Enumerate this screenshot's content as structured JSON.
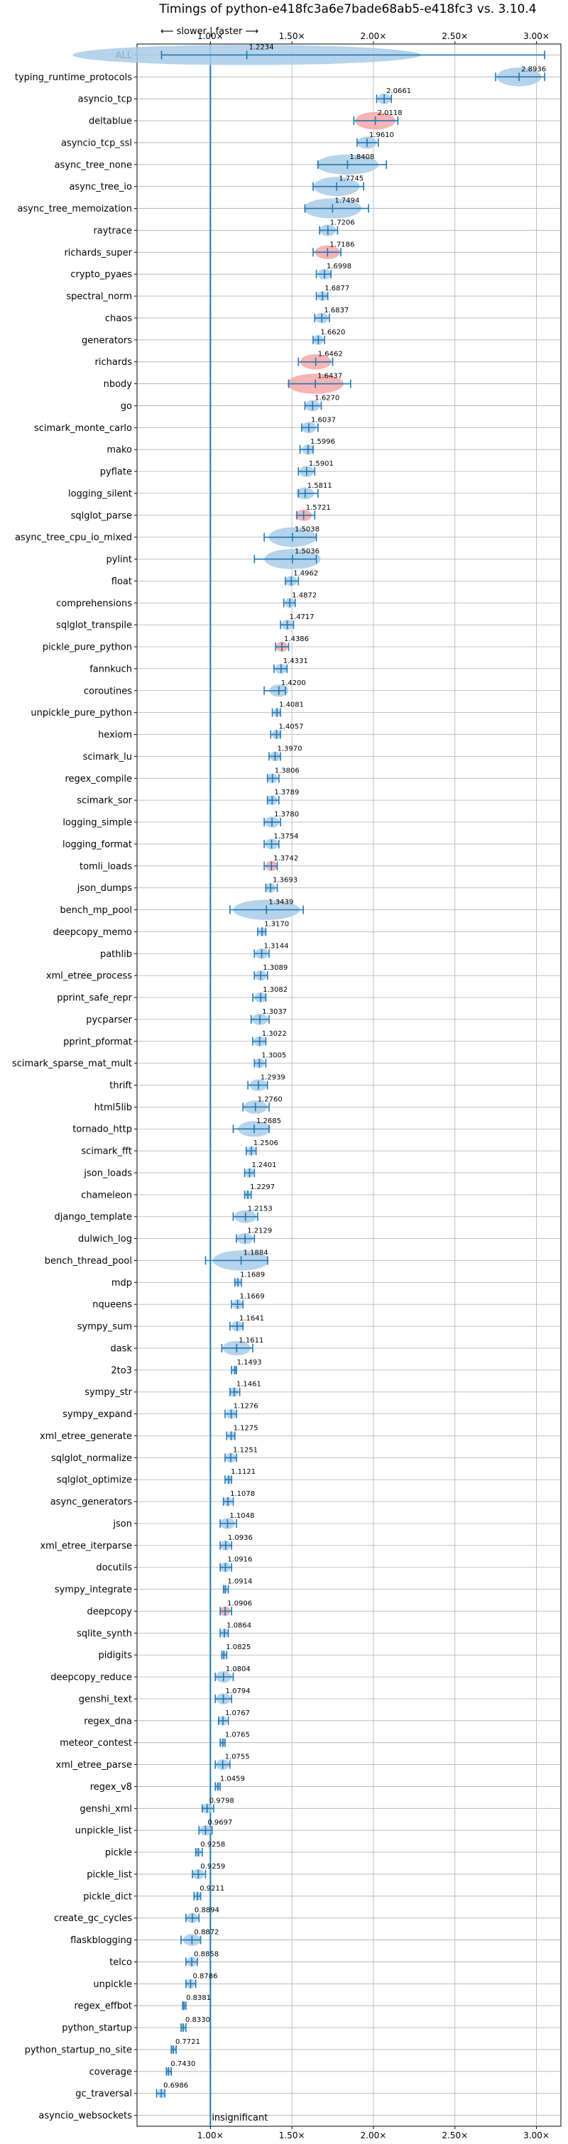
{
  "chart_data": {
    "type": "violin",
    "title": "Timings of python-e418fc3a6e7bade68ab5-e418fc3 vs. 3.10.4",
    "direction_note": "⟵ slower | faster ⟶",
    "bottom_note": "insignificant",
    "x_ticks": [
      "1.00×",
      "1.50×",
      "2.00×",
      "2.50×",
      "3.00×"
    ],
    "x_tick_values": [
      1.0,
      1.5,
      2.0,
      2.5,
      3.0
    ],
    "xlim": [
      0.55,
      3.15
    ],
    "reference_line": 1.0,
    "grid": true,
    "colors": {
      "violin": "#a8cbe8",
      "violin_slow": "#f4a7a7",
      "whisker": "#1f77b4",
      "reference": "#1f77b4",
      "grid": "#b0b0b0"
    },
    "categories": [
      "ALL",
      "typing_runtime_protocols",
      "asyncio_tcp",
      "deltablue",
      "asyncio_tcp_ssl",
      "async_tree_none",
      "async_tree_io",
      "async_tree_memoization",
      "raytrace",
      "richards_super",
      "crypto_pyaes",
      "spectral_norm",
      "chaos",
      "generators",
      "richards",
      "nbody",
      "go",
      "scimark_monte_carlo",
      "mako",
      "pyflate",
      "logging_silent",
      "sqlglot_parse",
      "async_tree_cpu_io_mixed",
      "pylint",
      "float",
      "comprehensions",
      "sqlglot_transpile",
      "pickle_pure_python",
      "fannkuch",
      "coroutines",
      "unpickle_pure_python",
      "hexiom",
      "scimark_lu",
      "regex_compile",
      "scimark_sor",
      "logging_simple",
      "logging_format",
      "tomli_loads",
      "json_dumps",
      "bench_mp_pool",
      "deepcopy_memo",
      "pathlib",
      "xml_etree_process",
      "pprint_safe_repr",
      "pycparser",
      "pprint_pformat",
      "scimark_sparse_mat_mult",
      "thrift",
      "html5lib",
      "tornado_http",
      "scimark_fft",
      "json_loads",
      "chameleon",
      "django_template",
      "dulwich_log",
      "bench_thread_pool",
      "mdp",
      "nqueens",
      "sympy_sum",
      "dask",
      "2to3",
      "sympy_str",
      "sympy_expand",
      "xml_etree_generate",
      "sqlglot_normalize",
      "sqlglot_optimize",
      "async_generators",
      "json",
      "xml_etree_iterparse",
      "docutils",
      "sympy_integrate",
      "deepcopy",
      "sqlite_synth",
      "pidigits",
      "deepcopy_reduce",
      "genshi_text",
      "regex_dna",
      "meteor_contest",
      "xml_etree_parse",
      "regex_v8",
      "genshi_xml",
      "unpickle_list",
      "pickle",
      "pickle_list",
      "pickle_dict",
      "create_gc_cycles",
      "flaskblogging",
      "telco",
      "unpickle",
      "regex_effbot",
      "python_startup",
      "python_startup_no_site",
      "coverage",
      "gc_traversal",
      "asyncio_websockets"
    ],
    "values": [
      1.2234,
      2.8936,
      2.0661,
      2.0118,
      1.961,
      1.8408,
      1.7745,
      1.7494,
      1.7206,
      1.7186,
      1.6998,
      1.6877,
      1.6837,
      1.662,
      1.6462,
      1.6437,
      1.627,
      1.6037,
      1.5996,
      1.5901,
      1.5811,
      1.5721,
      1.5038,
      1.5036,
      1.4962,
      1.4872,
      1.4717,
      1.4386,
      1.4331,
      1.42,
      1.4081,
      1.4057,
      1.397,
      1.3806,
      1.3789,
      1.378,
      1.3754,
      1.3742,
      1.3693,
      1.3439,
      1.317,
      1.3144,
      1.3089,
      1.3082,
      1.3037,
      1.3022,
      1.3005,
      1.2939,
      1.276,
      1.2685,
      1.2506,
      1.2401,
      1.2297,
      1.2153,
      1.2129,
      1.1884,
      1.1689,
      1.1669,
      1.1641,
      1.1611,
      1.1493,
      1.1461,
      1.1276,
      1.1275,
      1.1251,
      1.1121,
      1.1078,
      1.1048,
      1.0936,
      1.0916,
      1.0914,
      1.0906,
      1.0864,
      1.0825,
      1.0804,
      1.0794,
      1.0767,
      1.0765,
      1.0755,
      1.0459,
      0.9798,
      0.9697,
      0.9258,
      0.9259,
      0.9211,
      0.8894,
      0.8872,
      0.8858,
      0.8786,
      0.8381,
      0.833,
      0.7721,
      0.743,
      0.6986,
      null
    ],
    "value_labels": [
      "1.2234",
      "2.8936",
      "2.0661",
      "2.0118",
      "1.9610",
      "1.8408",
      "1.7745",
      "1.7494",
      "1.7206",
      "1.7186",
      "1.6998",
      "1.6877",
      "1.6837",
      "1.6620",
      "1.6462",
      "1.6437",
      "1.6270",
      "1.6037",
      "1.5996",
      "1.5901",
      "1.5811",
      "1.5721",
      "1.5038",
      "1.5036",
      "1.4962",
      "1.4872",
      "1.4717",
      "1.4386",
      "1.4331",
      "1.4200",
      "1.4081",
      "1.4057",
      "1.3970",
      "1.3806",
      "1.3789",
      "1.3780",
      "1.3754",
      "1.3742",
      "1.3693",
      "1.3439",
      "1.3170",
      "1.3144",
      "1.3089",
      "1.3082",
      "1.3037",
      "1.3022",
      "1.3005",
      "1.2939",
      "1.2760",
      "1.2685",
      "1.2506",
      "1.2401",
      "1.2297",
      "1.2153",
      "1.2129",
      "1.1884",
      "1.1689",
      "1.1669",
      "1.1641",
      "1.1611",
      "1.1493",
      "1.1461",
      "1.1276",
      "1.1275",
      "1.1251",
      "1.1121",
      "1.1078",
      "1.1048",
      "1.0936",
      "1.0916",
      "1.0914",
      "1.0906",
      "1.0864",
      "1.0825",
      "1.0804",
      "1.0794",
      "1.0767",
      "1.0765",
      "1.0755",
      "1.0459",
      "0.9798",
      "0.9697",
      "0.9258",
      "0.9259",
      "0.9211",
      "0.8894",
      "0.8872",
      "0.8858",
      "0.8786",
      "0.8381",
      "0.8330",
      "0.7721",
      "0.7430",
      "0.6986",
      ""
    ],
    "ranges": [
      [
        0.7,
        3.05
      ],
      [
        2.75,
        3.05
      ],
      [
        2.02,
        2.11
      ],
      [
        1.88,
        2.15
      ],
      [
        1.9,
        2.03
      ],
      [
        1.66,
        2.08
      ],
      [
        1.63,
        1.94
      ],
      [
        1.58,
        1.97
      ],
      [
        1.67,
        1.78
      ],
      [
        1.63,
        1.8
      ],
      [
        1.65,
        1.74
      ],
      [
        1.65,
        1.72
      ],
      [
        1.64,
        1.73
      ],
      [
        1.63,
        1.7
      ],
      [
        1.54,
        1.75
      ],
      [
        1.48,
        1.86
      ],
      [
        1.58,
        1.68
      ],
      [
        1.56,
        1.66
      ],
      [
        1.55,
        1.63
      ],
      [
        1.54,
        1.64
      ],
      [
        1.54,
        1.66
      ],
      [
        1.53,
        1.64
      ],
      [
        1.33,
        1.65
      ],
      [
        1.27,
        1.65
      ],
      [
        1.46,
        1.54
      ],
      [
        1.45,
        1.52
      ],
      [
        1.43,
        1.51
      ],
      [
        1.4,
        1.48
      ],
      [
        1.39,
        1.47
      ],
      [
        1.33,
        1.46
      ],
      [
        1.38,
        1.43
      ],
      [
        1.37,
        1.43
      ],
      [
        1.36,
        1.43
      ],
      [
        1.35,
        1.42
      ],
      [
        1.35,
        1.42
      ],
      [
        1.33,
        1.43
      ],
      [
        1.33,
        1.42
      ],
      [
        1.33,
        1.41
      ],
      [
        1.34,
        1.41
      ],
      [
        1.12,
        1.57
      ],
      [
        1.29,
        1.34
      ],
      [
        1.27,
        1.36
      ],
      [
        1.27,
        1.35
      ],
      [
        1.26,
        1.34
      ],
      [
        1.25,
        1.36
      ],
      [
        1.26,
        1.34
      ],
      [
        1.27,
        1.34
      ],
      [
        1.23,
        1.35
      ],
      [
        1.2,
        1.36
      ],
      [
        1.14,
        1.36
      ],
      [
        1.22,
        1.28
      ],
      [
        1.21,
        1.27
      ],
      [
        1.21,
        1.25
      ],
      [
        1.14,
        1.29
      ],
      [
        1.16,
        1.27
      ],
      [
        0.97,
        1.35
      ],
      [
        1.15,
        1.19
      ],
      [
        1.13,
        1.2
      ],
      [
        1.12,
        1.2
      ],
      [
        1.07,
        1.26
      ],
      [
        1.13,
        1.16
      ],
      [
        1.12,
        1.18
      ],
      [
        1.09,
        1.16
      ],
      [
        1.1,
        1.15
      ],
      [
        1.09,
        1.16
      ],
      [
        1.09,
        1.13
      ],
      [
        1.08,
        1.14
      ],
      [
        1.06,
        1.16
      ],
      [
        1.06,
        1.13
      ],
      [
        1.06,
        1.13
      ],
      [
        1.08,
        1.11
      ],
      [
        1.06,
        1.13
      ],
      [
        1.06,
        1.11
      ],
      [
        1.07,
        1.1
      ],
      [
        1.03,
        1.14
      ],
      [
        1.03,
        1.13
      ],
      [
        1.05,
        1.11
      ],
      [
        1.06,
        1.09
      ],
      [
        1.03,
        1.12
      ],
      [
        1.03,
        1.06
      ],
      [
        0.95,
        1.02
      ],
      [
        0.93,
        1.01
      ],
      [
        0.91,
        0.95
      ],
      [
        0.89,
        0.97
      ],
      [
        0.9,
        0.94
      ],
      [
        0.85,
        0.93
      ],
      [
        0.82,
        0.94
      ],
      [
        0.85,
        0.92
      ],
      [
        0.85,
        0.91
      ],
      [
        0.83,
        0.85
      ],
      [
        0.82,
        0.85
      ],
      [
        0.76,
        0.79
      ],
      [
        0.73,
        0.76
      ],
      [
        0.67,
        0.72
      ],
      null
    ],
    "slower_flags": [
      false,
      false,
      false,
      true,
      false,
      false,
      false,
      false,
      false,
      true,
      false,
      false,
      false,
      false,
      true,
      true,
      false,
      false,
      false,
      false,
      false,
      true,
      false,
      false,
      false,
      false,
      false,
      true,
      false,
      false,
      false,
      false,
      false,
      false,
      false,
      false,
      false,
      true,
      false,
      false,
      false,
      false,
      false,
      false,
      false,
      false,
      false,
      false,
      false,
      false,
      false,
      false,
      false,
      false,
      false,
      false,
      false,
      false,
      false,
      false,
      false,
      false,
      false,
      false,
      false,
      false,
      false,
      false,
      false,
      false,
      false,
      true,
      false,
      false,
      false,
      false,
      false,
      false,
      false,
      false,
      false,
      false,
      false,
      false,
      false,
      false,
      false,
      false,
      false,
      false,
      false,
      false,
      false,
      false,
      false
    ]
  }
}
